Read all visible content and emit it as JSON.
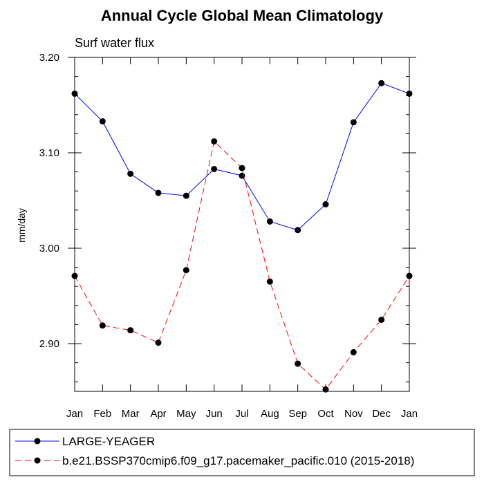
{
  "chart_data": {
    "type": "line",
    "title": "Annual Cycle Global Mean Climatology",
    "subtitle": "Surf water flux",
    "xlabel": "",
    "ylabel": "mm/day",
    "categories": [
      "Jan",
      "Feb",
      "Mar",
      "Apr",
      "May",
      "Jun",
      "Jul",
      "Aug",
      "Sep",
      "Oct",
      "Nov",
      "Dec",
      "Jan"
    ],
    "ylim": [
      2.85,
      3.2
    ],
    "yticks": [
      2.9,
      3.0,
      3.1,
      3.2
    ],
    "ytick_labels": [
      "2.90",
      "3.00",
      "3.10",
      "3.20"
    ],
    "grid": false,
    "legend_position": "bottom",
    "series": [
      {
        "name": "LARGE-YEAGER",
        "color": "#0000ff",
        "dash": "solid",
        "marker": "circle",
        "values": [
          3.162,
          3.133,
          3.078,
          3.058,
          3.055,
          3.083,
          3.076,
          3.028,
          3.019,
          3.046,
          3.132,
          3.173,
          3.162
        ]
      },
      {
        "name": "b.e21.BSSP370cmip6.f09_g17.pacemaker_pacific.010 (2015-2018)",
        "color": "#ff0000",
        "dash": "dashed",
        "marker": "circle",
        "values": [
          2.971,
          2.919,
          2.914,
          2.901,
          2.977,
          3.112,
          3.084,
          2.965,
          2.879,
          2.852,
          2.891,
          2.925,
          2.971
        ]
      }
    ]
  }
}
